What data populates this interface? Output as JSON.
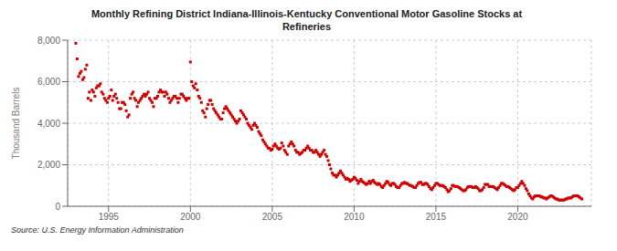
{
  "chart_data": {
    "type": "scatter",
    "title": "Monthly Refining District Indiana-Illinois-Kentucky Conventional Motor Gasoline Stocks at\nRefineries",
    "ylabel": "Thousand Barrels",
    "annotations": [
      "Source: U.S. Energy Information Administration"
    ],
    "color": "#CC0000",
    "marker": "square",
    "grid": true,
    "xlim": [
      1992.5,
      2024.5
    ],
    "xticks": [
      1995,
      2000,
      2005,
      2010,
      2015,
      2020
    ],
    "ylim": [
      0,
      8000
    ],
    "yticks": [
      0,
      {
        "value": 2000,
        "label": "2,000"
      },
      {
        "value": 4000,
        "label": "4,000"
      },
      {
        "value": 6000,
        "label": "6,000"
      },
      {
        "value": 8000,
        "label": "8,000"
      }
    ],
    "x": [
      1993.0,
      1993.08,
      1993.17,
      1993.25,
      1993.33,
      1993.42,
      1993.5,
      1993.58,
      1993.67,
      1993.75,
      1993.83,
      1993.92,
      1994.0,
      1994.08,
      1994.17,
      1994.25,
      1994.33,
      1994.42,
      1994.5,
      1994.58,
      1994.67,
      1994.75,
      1994.83,
      1994.92,
      1995.0,
      1995.08,
      1995.17,
      1995.25,
      1995.33,
      1995.42,
      1995.5,
      1995.58,
      1995.67,
      1995.75,
      1995.83,
      1995.92,
      1996.0,
      1996.08,
      1996.17,
      1996.25,
      1996.33,
      1996.42,
      1996.5,
      1996.58,
      1996.67,
      1996.75,
      1996.83,
      1996.92,
      1997.0,
      1997.08,
      1997.17,
      1997.25,
      1997.33,
      1997.42,
      1997.5,
      1997.58,
      1997.67,
      1997.75,
      1997.83,
      1997.92,
      1998.0,
      1998.08,
      1998.17,
      1998.25,
      1998.33,
      1998.42,
      1998.5,
      1998.58,
      1998.67,
      1998.75,
      1998.83,
      1998.92,
      1999.0,
      1999.08,
      1999.17,
      1999.25,
      1999.33,
      1999.42,
      1999.5,
      1999.58,
      1999.67,
      1999.75,
      1999.83,
      1999.92,
      2000.0,
      2000.08,
      2000.17,
      2000.25,
      2000.33,
      2000.42,
      2000.5,
      2000.58,
      2000.67,
      2000.75,
      2000.83,
      2000.92,
      2001.0,
      2001.08,
      2001.17,
      2001.25,
      2001.33,
      2001.42,
      2001.5,
      2001.58,
      2001.67,
      2001.75,
      2001.83,
      2001.92,
      2002.0,
      2002.08,
      2002.17,
      2002.25,
      2002.33,
      2002.42,
      2002.5,
      2002.58,
      2002.67,
      2002.75,
      2002.83,
      2002.92,
      2003.0,
      2003.08,
      2003.17,
      2003.25,
      2003.33,
      2003.42,
      2003.5,
      2003.58,
      2003.67,
      2003.75,
      2003.83,
      2003.92,
      2004.0,
      2004.08,
      2004.17,
      2004.25,
      2004.33,
      2004.42,
      2004.5,
      2004.58,
      2004.67,
      2004.75,
      2004.83,
      2004.92,
      2005.0,
      2005.08,
      2005.17,
      2005.25,
      2005.33,
      2005.42,
      2005.5,
      2005.58,
      2005.67,
      2005.75,
      2005.83,
      2005.92,
      2006.0,
      2006.08,
      2006.17,
      2006.25,
      2006.33,
      2006.42,
      2006.5,
      2006.58,
      2006.67,
      2006.75,
      2006.83,
      2006.92,
      2007.0,
      2007.08,
      2007.17,
      2007.25,
      2007.33,
      2007.42,
      2007.5,
      2007.58,
      2007.67,
      2007.75,
      2007.83,
      2007.92,
      2008.0,
      2008.08,
      2008.17,
      2008.25,
      2008.33,
      2008.42,
      2008.5,
      2008.58,
      2008.67,
      2008.75,
      2008.83,
      2008.92,
      2009.0,
      2009.08,
      2009.17,
      2009.25,
      2009.33,
      2009.42,
      2009.5,
      2009.58,
      2009.67,
      2009.75,
      2009.83,
      2009.92,
      2010.0,
      2010.08,
      2010.17,
      2010.25,
      2010.33,
      2010.42,
      2010.5,
      2010.58,
      2010.67,
      2010.75,
      2010.83,
      2010.92,
      2011.0,
      2011.08,
      2011.17,
      2011.25,
      2011.33,
      2011.42,
      2011.5,
      2011.58,
      2011.67,
      2011.75,
      2011.83,
      2011.92,
      2012.0,
      2012.08,
      2012.17,
      2012.25,
      2012.33,
      2012.42,
      2012.5,
      2012.58,
      2012.67,
      2012.75,
      2012.83,
      2012.92,
      2013.0,
      2013.08,
      2013.17,
      2013.25,
      2013.33,
      2013.42,
      2013.5,
      2013.58,
      2013.67,
      2013.75,
      2013.83,
      2013.92,
      2014.0,
      2014.08,
      2014.17,
      2014.25,
      2014.33,
      2014.42,
      2014.5,
      2014.58,
      2014.67,
      2014.75,
      2014.83,
      2014.92,
      2015.0,
      2015.08,
      2015.17,
      2015.25,
      2015.33,
      2015.42,
      2015.5,
      2015.58,
      2015.67,
      2015.75,
      2015.83,
      2015.92,
      2016.0,
      2016.08,
      2016.17,
      2016.25,
      2016.33,
      2016.42,
      2016.5,
      2016.58,
      2016.67,
      2016.75,
      2016.83,
      2016.92,
      2017.0,
      2017.08,
      2017.17,
      2017.25,
      2017.33,
      2017.42,
      2017.5,
      2017.58,
      2017.67,
      2017.75,
      2017.83,
      2017.92,
      2018.0,
      2018.08,
      2018.17,
      2018.25,
      2018.33,
      2018.42,
      2018.5,
      2018.58,
      2018.67,
      2018.75,
      2018.83,
      2018.92,
      2019.0,
      2019.08,
      2019.17,
      2019.25,
      2019.33,
      2019.42,
      2019.5,
      2019.58,
      2019.67,
      2019.75,
      2019.83,
      2019.92,
      2020.0,
      2020.08,
      2020.17,
      2020.25,
      2020.33,
      2020.42,
      2020.5,
      2020.58,
      2020.67,
      2020.75,
      2020.83,
      2020.92,
      2021.0,
      2021.08,
      2021.17,
      2021.25,
      2021.33,
      2021.42,
      2021.5,
      2021.58,
      2021.67,
      2021.75,
      2021.83,
      2021.92,
      2022.0,
      2022.08,
      2022.17,
      2022.25,
      2022.33,
      2022.42,
      2022.5,
      2022.58,
      2022.67,
      2022.75,
      2022.83,
      2022.92,
      2023.0,
      2023.08,
      2023.17,
      2023.25,
      2023.33,
      2023.42,
      2023.5,
      2023.58,
      2023.67,
      2023.75,
      2023.83,
      2023.92
    ],
    "values": [
      7850,
      7100,
      6250,
      6400,
      6500,
      6100,
      6200,
      6600,
      6800,
      5200,
      5500,
      5100,
      5600,
      5500,
      5300,
      5700,
      5800,
      5800,
      5900,
      5500,
      5400,
      5200,
      5100,
      5000,
      5200,
      5300,
      5600,
      5100,
      5300,
      5400,
      5200,
      5000,
      4700,
      4700,
      5000,
      5000,
      4900,
      4600,
      4300,
      4400,
      5200,
      5400,
      5500,
      5200,
      5100,
      4800,
      5000,
      5100,
      5200,
      5300,
      5400,
      5300,
      5400,
      5500,
      5200,
      5100,
      5000,
      4800,
      5200,
      5200,
      5300,
      5500,
      5600,
      5500,
      5500,
      5300,
      5500,
      5400,
      5200,
      5000,
      5100,
      5200,
      5300,
      5300,
      5200,
      5000,
      5200,
      5400,
      5400,
      5300,
      5200,
      5100,
      5200,
      5200,
      6950,
      6000,
      5800,
      5700,
      5900,
      5600,
      5300,
      5200,
      5000,
      4600,
      4500,
      4300,
      4700,
      4900,
      5100,
      5100,
      4900,
      4700,
      4600,
      4500,
      4400,
      4300,
      4200,
      4200,
      4500,
      4700,
      4800,
      4700,
      4600,
      4500,
      4400,
      4300,
      4200,
      4100,
      4000,
      4100,
      4200,
      4600,
      4500,
      4400,
      4300,
      4200,
      4000,
      3900,
      3800,
      3700,
      3900,
      4000,
      3900,
      3800,
      3600,
      3500,
      3400,
      3200,
      3100,
      3000,
      2900,
      2800,
      2800,
      2700,
      2750,
      2900,
      3000,
      2900,
      2800,
      2750,
      2800,
      3050,
      2900,
      2700,
      2600,
      2500,
      2900,
      3000,
      3100,
      3000,
      2900,
      2700,
      2600,
      2600,
      2500,
      2550,
      2600,
      2700,
      2700,
      2800,
      2900,
      2800,
      2700,
      2700,
      2600,
      2600,
      2700,
      2600,
      2500,
      2400,
      2500,
      2600,
      2700,
      2500,
      2400,
      2200,
      2000,
      1800,
      1600,
      1500,
      1500,
      1400,
      1500,
      1600,
      1700,
      1600,
      1500,
      1400,
      1300,
      1350,
      1300,
      1200,
      1250,
      1300,
      1400,
      1350,
      1250,
      1100,
      1200,
      1300,
      1200,
      1150,
      1100,
      1050,
      1100,
      1200,
      1100,
      1200,
      1250,
      1150,
      1100,
      1050,
      1100,
      1050,
      950,
      900,
      1000,
      1100,
      1200,
      1150,
      1050,
      1000,
      1100,
      1100,
      1050,
      950,
      900,
      900,
      1000,
      1100,
      1100,
      1150,
      1100,
      1100,
      1050,
      1000,
      1000,
      950,
      900,
      900,
      1000,
      1100,
      1150,
      1150,
      1050,
      1050,
      1100,
      1100,
      1050,
      950,
      850,
      800,
      900,
      1000,
      1100,
      1100,
      1050,
      1000,
      1000,
      1000,
      950,
      900,
      800,
      700,
      750,
      850,
      1000,
      1000,
      950,
      950,
      950,
      900,
      850,
      800,
      750,
      750,
      800,
      900,
      950,
      950,
      950,
      900,
      900,
      950,
      900,
      850,
      750,
      750,
      800,
      900,
      1050,
      1050,
      1050,
      950,
      950,
      950,
      950,
      900,
      850,
      800,
      900,
      1000,
      1100,
      1100,
      1050,
      1000,
      950,
      950,
      900,
      850,
      800,
      750,
      800,
      900,
      900,
      1000,
      1100,
      1200,
      1100,
      1000,
      850,
      750,
      600,
      500,
      400,
      350,
      450,
      500,
      500,
      500,
      500,
      450,
      450,
      400,
      400,
      350,
      400,
      450,
      500,
      500,
      450,
      400,
      350,
      350,
      300,
      300,
      300,
      300,
      300,
      350,
      350,
      400,
      400,
      400,
      450,
      500,
      500,
      500,
      500,
      450,
      400,
      350
    ]
  }
}
